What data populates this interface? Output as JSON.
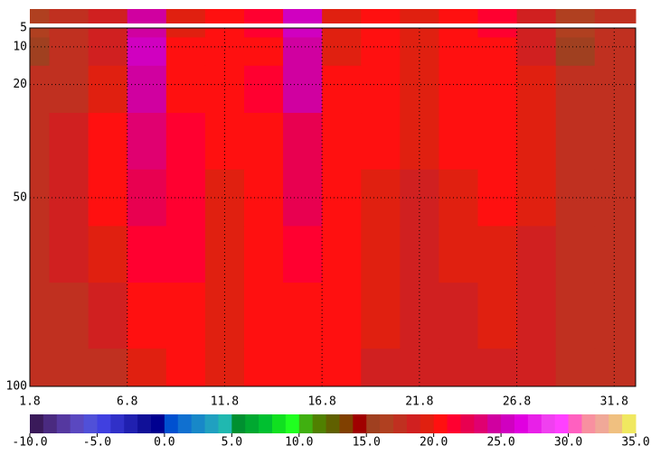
{
  "chart_data": {
    "type": "heatmap",
    "x": [
      1.8,
      3.8,
      5.8,
      7.8,
      9.8,
      11.8,
      13.8,
      15.8,
      17.8,
      19.8,
      21.8,
      23.8,
      25.8,
      27.8,
      29.8,
      31.8
    ],
    "y": [
      5,
      10,
      20,
      35,
      50,
      65,
      80,
      100
    ],
    "z": [
      [
        16,
        17,
        18,
        24,
        19,
        20,
        21,
        25,
        19,
        20,
        19,
        20,
        21,
        18,
        16,
        17
      ],
      [
        15,
        17,
        18,
        25,
        20,
        20,
        20,
        24,
        19,
        20,
        19,
        20,
        20,
        18,
        15,
        17
      ],
      [
        17,
        17,
        19,
        24,
        20,
        20,
        21,
        24,
        20,
        20,
        19,
        20,
        20,
        19,
        17,
        17
      ],
      [
        17,
        18,
        20,
        23,
        21,
        20,
        20,
        22,
        20,
        20,
        19,
        20,
        20,
        19,
        17,
        17
      ],
      [
        17,
        18,
        20,
        22,
        21,
        19,
        20,
        22,
        20,
        19,
        18,
        19,
        20,
        19,
        17,
        17
      ],
      [
        17,
        18,
        19,
        21,
        21,
        19,
        20,
        21,
        20,
        19,
        18,
        19,
        19,
        18,
        17,
        17
      ],
      [
        17,
        17,
        18,
        20,
        20,
        19,
        20,
        20,
        20,
        19,
        18,
        18,
        19,
        18,
        17,
        17
      ],
      [
        17,
        17,
        17,
        19,
        20,
        19,
        20,
        20,
        20,
        18,
        18,
        18,
        18,
        18,
        17,
        17
      ]
    ],
    "xlim": [
      1.8,
      32.9
    ],
    "xticks": [
      1.8,
      6.8,
      11.8,
      16.8,
      21.8,
      26.8,
      31.8
    ],
    "ylim": [
      5,
      100
    ],
    "y_inverted": true,
    "yticks": [
      5,
      10,
      20,
      50,
      100
    ],
    "grid": true,
    "colorbar": {
      "lim": [
        -10,
        35
      ],
      "ticks": [
        {
          "value": -10,
          "label": "-10.0"
        },
        {
          "value": -5,
          "label": "-5.0"
        },
        {
          "value": 0,
          "label": "0.0"
        },
        {
          "value": 5,
          "label": "5.0"
        },
        {
          "value": 10,
          "label": "10.0"
        },
        {
          "value": 15,
          "label": "15.0"
        },
        {
          "value": 20,
          "label": "20.0"
        },
        {
          "value": 25,
          "label": "25.0"
        },
        {
          "value": 30,
          "label": "30.0"
        },
        {
          "value": 35,
          "label": "35.0"
        }
      ],
      "colors": [
        "#3a1a5a",
        "#4a2a80",
        "#5538a0",
        "#5a48c0",
        "#5050d8",
        "#4040e0",
        "#3030c8",
        "#2020b0",
        "#101098",
        "#000090",
        "#0050d0",
        "#1070d0",
        "#1888c8",
        "#20a0c0",
        "#20b8b0",
        "#009030",
        "#00a830",
        "#00c030",
        "#10e020",
        "#20ff20",
        "#40b010",
        "#508000",
        "#606000",
        "#804000",
        "#a00000",
        "#a04020",
        "#b04020",
        "#c03020",
        "#d02020",
        "#e02010",
        "#ff1010",
        "#ff0030",
        "#e80050",
        "#e00070",
        "#d000a0",
        "#d000c0",
        "#e000e0",
        "#e820e8",
        "#f040f0",
        "#ff40ff",
        "#ff60c0",
        "#f890a0",
        "#f0a898",
        "#f0c080",
        "#f0e860"
      ]
    }
  }
}
